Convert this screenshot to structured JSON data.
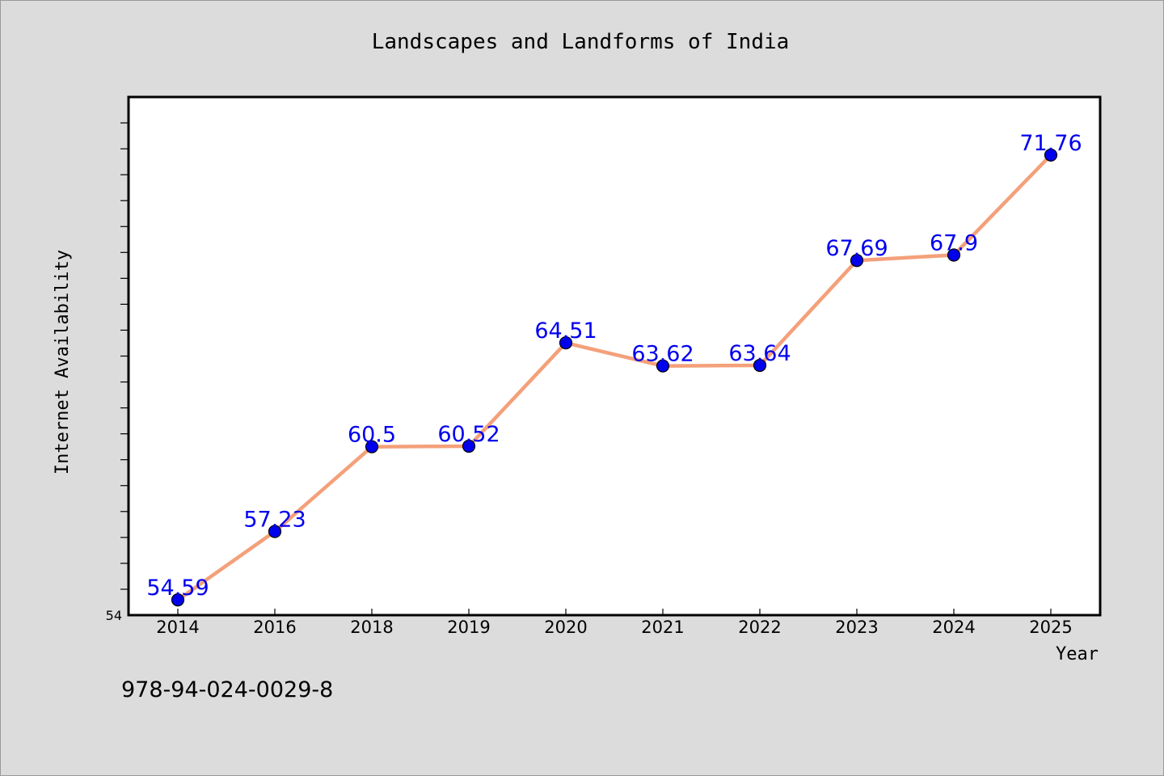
{
  "chart_data": {
    "type": "line",
    "title": "Landscapes and Landforms of India",
    "xlabel": "Year",
    "ylabel": "Internet Availability",
    "categories": [
      "2014",
      "2016",
      "2018",
      "2019",
      "2020",
      "2021",
      "2022",
      "2023",
      "2024",
      "2025"
    ],
    "series": [
      {
        "values": [
          54.59,
          57.23,
          60.5,
          60.52,
          64.51,
          63.62,
          63.64,
          67.69,
          67.9,
          71.76
        ]
      }
    ],
    "data_labels": [
      "54.59",
      "57.23",
      "60.5",
      "60.52",
      "64.51",
      "63.62",
      "63.64",
      "67.69",
      "67.9",
      "71.76"
    ],
    "ylim": [
      54,
      74
    ],
    "y_tick_labels": [
      "54"
    ],
    "y_minor_ticks": [
      55,
      56,
      57,
      58,
      59,
      60,
      61,
      62,
      63,
      64,
      65,
      66,
      67,
      68,
      69,
      70,
      71,
      72,
      73
    ],
    "grid": false,
    "legend": "none",
    "colors": {
      "background": "#dcdcdc",
      "plot_background": "#ffffff",
      "line": "#f4a07a",
      "marker": "#0000ee",
      "label": "#0000ee",
      "text": "#000000"
    }
  },
  "footer": {
    "isbn": "978-94-024-0029-8"
  }
}
